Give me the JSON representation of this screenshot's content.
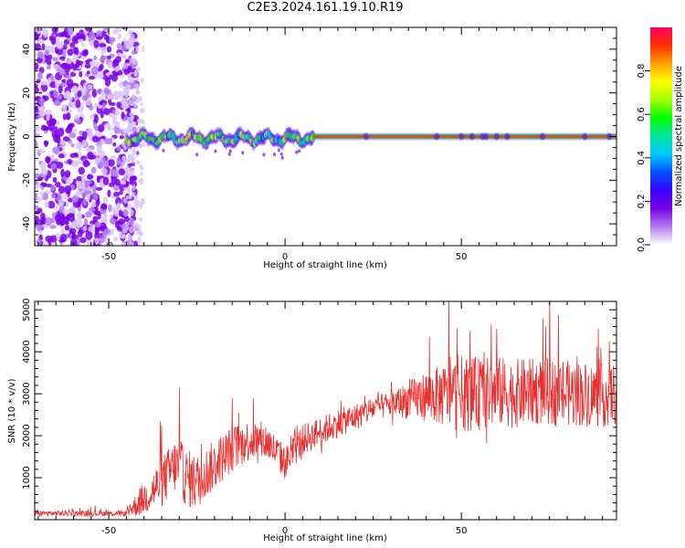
{
  "title": "C2E3.2024.161.19.10.R19",
  "colors": {
    "axis": "#000000",
    "snr_line": "#e83030",
    "ridge": "#e8413a",
    "ridge_edge": "#22c84a",
    "speckle": "#7a2be8"
  },
  "chart_data": [
    {
      "type": "heatmap",
      "name": "spectrogram",
      "xlabel": "Height of straight line (km)",
      "ylabel": "Frequency (Hz)",
      "xlim": [
        -71,
        94
      ],
      "ylim": [
        -50,
        50
      ],
      "x_ticks": [
        -50,
        0,
        50
      ],
      "y_ticks": [
        -40,
        -20,
        0,
        20,
        40
      ],
      "grid": false,
      "description_of_content": [
        {
          "x_range": [
            -71,
            -45
          ],
          "frequency_range": [
            -50,
            50
          ],
          "amplitude_level": "low, scattered noise"
        },
        {
          "x_range": [
            -45,
            8
          ],
          "frequency_center": 0,
          "frequency_spread": [
            -6,
            4
          ],
          "amplitude_level": "medium to high, wavering ridge"
        },
        {
          "x_range": [
            8,
            94
          ],
          "frequency_center": 0,
          "amplitude_level": "high (~0.9), steady ridge"
        }
      ],
      "colorbar": {
        "label": "Normalized spectral amplitude",
        "range": [
          0,
          1
        ],
        "ticks": [
          "0.0",
          "0.2",
          "0.4",
          "0.6",
          "0.8"
        ],
        "tick_values": [
          0,
          0.2,
          0.4,
          0.6,
          0.8
        ],
        "colormap": [
          "#ffffff",
          "#b27cf0",
          "#7a00e6",
          "#3a00ff",
          "#0050ff",
          "#00c8ff",
          "#00e6a0",
          "#00ff00",
          "#a0ff00",
          "#ffff00",
          "#ffa000",
          "#ff3000",
          "#ff0060"
        ]
      }
    },
    {
      "type": "line",
      "name": "snr",
      "xlabel": "Height of straight line (km)",
      "ylabel": "SNR (10 * v/v)",
      "xlim": [
        -71,
        94
      ],
      "ylim": [
        0,
        5200
      ],
      "x_ticks": [
        -50,
        0,
        50
      ],
      "y_ticks": [
        1000,
        2000,
        3000,
        4000,
        5000
      ],
      "grid": false,
      "trend_x": [
        -71,
        -45,
        -43,
        -40,
        -35,
        -31,
        -28,
        -25,
        -20,
        -15,
        -10,
        -5,
        0,
        5,
        10,
        15,
        20,
        25,
        30,
        35,
        40,
        45,
        50,
        55,
        60,
        65,
        70,
        75,
        80,
        85,
        90,
        94
      ],
      "trend_y": [
        150,
        150,
        300,
        500,
        900,
        1300,
        1000,
        900,
        1300,
        1700,
        1900,
        1850,
        1350,
        1900,
        2100,
        2300,
        2450,
        2650,
        2750,
        2850,
        2950,
        2950,
        3000,
        3000,
        3050,
        3000,
        3050,
        3050,
        3000,
        3000,
        2950,
        3000
      ],
      "noise_amplitude_x": [
        -71,
        -45,
        -42,
        -35,
        -28,
        -20,
        -10,
        0,
        10,
        30,
        40,
        50,
        60,
        70,
        80,
        94
      ],
      "noise_amplitude_y": [
        70,
        70,
        300,
        600,
        700,
        600,
        500,
        400,
        350,
        300,
        600,
        900,
        850,
        800,
        800,
        750
      ],
      "peaks": [
        {
          "x": 46.5,
          "y": 5200
        },
        {
          "x": -30,
          "y": 3150
        },
        {
          "x": 74,
          "y": 4600
        },
        {
          "x": 41,
          "y": 4350
        },
        {
          "x": 52.5,
          "y": 4500
        },
        {
          "x": 60,
          "y": 4550
        },
        {
          "x": 92,
          "y": 4250
        }
      ]
    }
  ]
}
